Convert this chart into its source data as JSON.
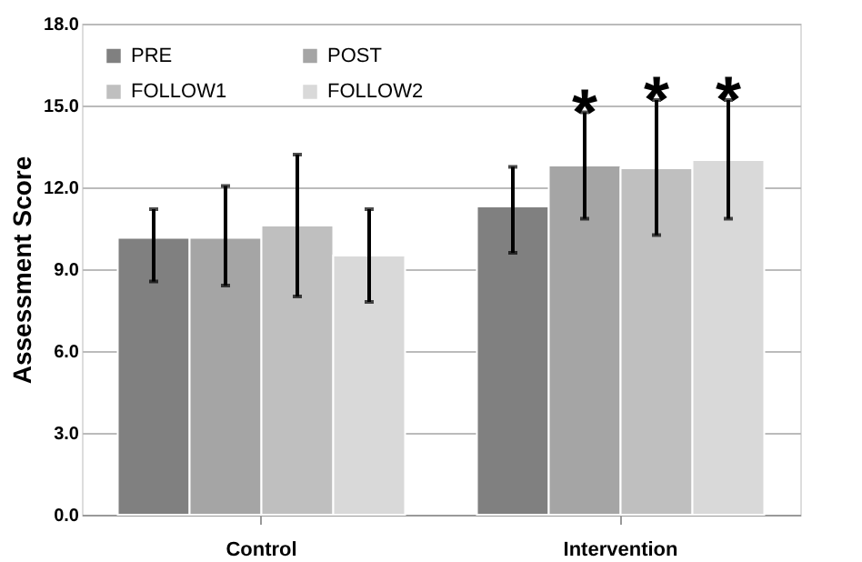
{
  "chart_data": {
    "type": "bar",
    "ylabel": "Assessment Score",
    "categories": [
      "Control",
      "Intervention"
    ],
    "series": [
      {
        "name": "PRE",
        "color": "#808080",
        "values": [
          10.15,
          11.3
        ],
        "errors": [
          [
            8.55,
            11.2
          ],
          [
            9.6,
            12.75
          ]
        ]
      },
      {
        "name": "POST",
        "color": "#a5a5a5",
        "values": [
          10.15,
          12.8
        ],
        "errors": [
          [
            8.4,
            12.05
          ],
          [
            10.85,
            14.75
          ]
        ]
      },
      {
        "name": "FOLLOW1",
        "color": "#bfbfbf",
        "values": [
          10.6,
          12.7
        ],
        "errors": [
          [
            8.0,
            13.2
          ],
          [
            10.25,
            15.2
          ]
        ]
      },
      {
        "name": "FOLLOW2",
        "color": "#d9d9d9",
        "values": [
          9.5,
          13.0
        ],
        "errors": [
          [
            7.8,
            11.2
          ],
          [
            10.85,
            15.2
          ]
        ]
      }
    ],
    "annotations": [
      "*",
      "*",
      "*"
    ],
    "ylim": [
      0,
      18
    ],
    "yticks": [
      {
        "value": 0,
        "label": "0.0"
      },
      {
        "value": 3,
        "label": "3.0"
      },
      {
        "value": 6,
        "label": "6.0"
      },
      {
        "value": 9,
        "label": "9.0"
      },
      {
        "value": 12,
        "label": "12.0"
      },
      {
        "value": 15,
        "label": "15.0"
      },
      {
        "value": 18,
        "label": "18.0"
      }
    ],
    "grid": "y",
    "legend": "top left"
  }
}
